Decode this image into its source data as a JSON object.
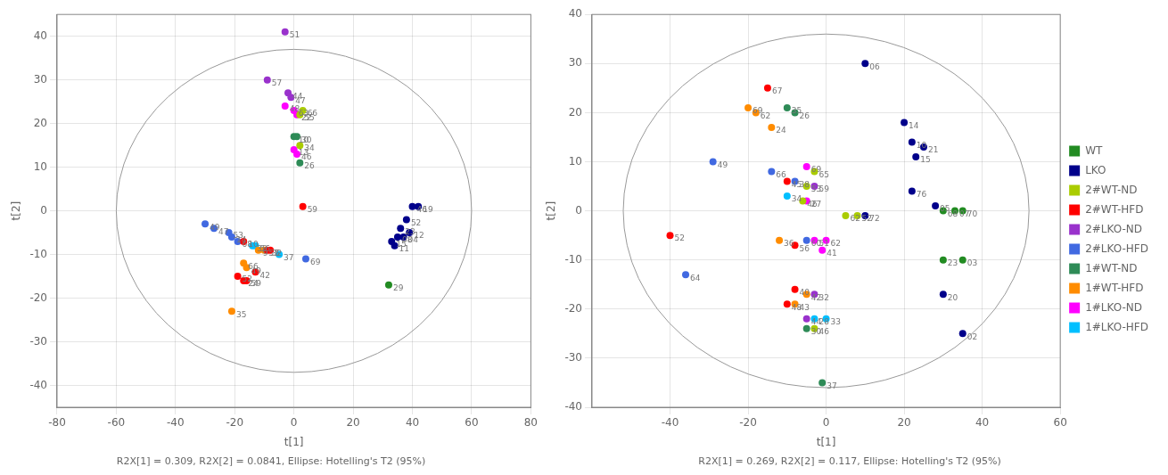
{
  "chart_data": [
    {
      "type": "scatter",
      "xlabel": "t[1]",
      "ylabel": "t[2]",
      "footnote": "R2X[1] = 0.309, R2X[2] = 0.0841, Ellipse: Hotelling's T2 (95%)",
      "xlim": [
        -80,
        80
      ],
      "ylim": [
        -45,
        45
      ],
      "xticks": [
        -80,
        -60,
        -40,
        -20,
        0,
        20,
        40,
        60,
        80
      ],
      "yticks": [
        -40,
        -30,
        -20,
        -10,
        0,
        10,
        20,
        30,
        40
      ],
      "grid": true,
      "ellipse": {
        "center": [
          0,
          0
        ],
        "rx": 60,
        "ry": 37
      },
      "series": [
        {
          "name": "WT",
          "color": "#228B22",
          "x": [
            32
          ],
          "values": [
            -17
          ],
          "labels": [
            "29"
          ]
        },
        {
          "name": "LKO",
          "color": "#00008B",
          "x": [
            40,
            42,
            38,
            36,
            39,
            35,
            37,
            33,
            34
          ],
          "values": [
            1,
            1,
            -2,
            -4,
            -5,
            -6,
            -6,
            -7,
            -8
          ],
          "labels": [
            "46",
            "19",
            "52",
            "23",
            "12",
            "08",
            "04",
            "15",
            "11"
          ]
        },
        {
          "name": "2#WT-ND",
          "color": "#AACC00",
          "x": [
            3,
            2,
            2
          ],
          "values": [
            23,
            22,
            15
          ],
          "labels": [
            "66",
            "55",
            "34"
          ]
        },
        {
          "name": "2#WT-HFD",
          "color": "#FF0000",
          "x": [
            3,
            -17,
            -9,
            -8,
            -13,
            -19,
            -17,
            -16
          ],
          "values": [
            1,
            -7,
            -9,
            -9,
            -14,
            -15,
            -16,
            -16
          ],
          "labels": [
            "59",
            "10",
            "32",
            "5",
            "42",
            "52",
            "24",
            "59"
          ]
        },
        {
          "name": "2#LKO-ND",
          "color": "#9932CC",
          "x": [
            -3,
            -9,
            -2,
            -1
          ],
          "values": [
            41,
            30,
            27,
            26
          ],
          "labels": [
            "51",
            "57",
            "44",
            "47"
          ]
        },
        {
          "name": "2#LKO-HFD",
          "color": "#4169E1",
          "x": [
            -30,
            -27,
            -22,
            -21,
            -19,
            4
          ],
          "values": [
            -3,
            -4,
            -5,
            -6,
            -7,
            -11
          ],
          "labels": [
            "49",
            "47",
            "53",
            "14",
            "68",
            "69"
          ]
        },
        {
          "name": "1#WT-ND",
          "color": "#2E8B57",
          "x": [
            0,
            1,
            2
          ],
          "values": [
            17,
            17,
            11
          ],
          "labels": [
            "10",
            "30",
            "26"
          ]
        },
        {
          "name": "1#WT-HFD",
          "color": "#FF8C00",
          "x": [
            -12,
            -10,
            -17,
            -16,
            -21
          ],
          "values": [
            -9,
            -9,
            -12,
            -13,
            -23
          ],
          "labels": [
            "9",
            "57",
            "66",
            "49",
            "35"
          ]
        },
        {
          "name": "1#LKO-ND",
          "color": "#FF00FF",
          "x": [
            -3,
            0,
            1,
            0,
            1
          ],
          "values": [
            24,
            23,
            22,
            14,
            13
          ],
          "labels": [
            "48",
            "63",
            "22",
            "13",
            "46"
          ]
        },
        {
          "name": "1#LKO-HFD",
          "color": "#00BFFF",
          "x": [
            -14,
            -13,
            -5
          ],
          "values": [
            -8,
            -8,
            -10
          ],
          "labels": [
            "38",
            "56",
            "37"
          ]
        }
      ]
    },
    {
      "type": "scatter",
      "xlabel": "t[1]",
      "ylabel": "t[2]",
      "footnote": "R2X[1] = 0.269, R2X[2] = 0.117, Ellipse: Hotelling's T2 (95%)",
      "xlim": [
        -60,
        60
      ],
      "ylim": [
        -40,
        40
      ],
      "xticks": [
        -40,
        -20,
        0,
        20,
        40,
        60
      ],
      "yticks": [
        -40,
        -30,
        -20,
        -10,
        0,
        10,
        20,
        30,
        40
      ],
      "grid": true,
      "legend": "right",
      "ellipse": {
        "center": [
          0,
          0
        ],
        "rx": 52,
        "ry": 36
      },
      "series": [
        {
          "name": "WT",
          "color": "#228B22",
          "x": [
            30,
            33,
            35,
            30,
            35
          ],
          "values": [
            0,
            0,
            0,
            -10,
            -10
          ],
          "labels": [
            "68",
            "07",
            "70",
            "23",
            "03"
          ]
        },
        {
          "name": "LKO",
          "color": "#00008B",
          "x": [
            10,
            20,
            22,
            25,
            23,
            22,
            28,
            10,
            30,
            35
          ],
          "values": [
            30,
            18,
            14,
            13,
            11,
            4,
            1,
            -1,
            -17,
            -25
          ],
          "labels": [
            "06",
            "14",
            "10",
            "21",
            "15",
            "76",
            "05",
            "72",
            "20",
            "02"
          ]
        },
        {
          "name": "2#WT-ND",
          "color": "#AACC00",
          "x": [
            -3,
            -5,
            -6,
            5,
            8,
            -3
          ],
          "values": [
            8,
            5,
            2,
            -1,
            -1,
            -24
          ],
          "labels": [
            "65",
            "53",
            "46",
            "62",
            "52",
            "46"
          ]
        },
        {
          "name": "2#WT-HFD",
          "color": "#FF0000",
          "x": [
            -15,
            -10,
            -40,
            -8,
            -8,
            -10
          ],
          "values": [
            25,
            6,
            -5,
            -7,
            -16,
            -19
          ],
          "labels": [
            "67",
            "45",
            "52",
            "56",
            "40",
            "48"
          ]
        },
        {
          "name": "2#LKO-ND",
          "color": "#9932CC",
          "x": [
            -3,
            -3,
            -5
          ],
          "values": [
            5,
            -17,
            -22
          ],
          "labels": [
            "59",
            "32",
            "44"
          ]
        },
        {
          "name": "2#LKO-HFD",
          "color": "#4169E1",
          "x": [
            -29,
            -14,
            -8,
            -5,
            -36
          ],
          "values": [
            10,
            8,
            6,
            -6,
            -13
          ],
          "labels": [
            "49",
            "66",
            "38",
            "60",
            "64"
          ]
        },
        {
          "name": "1#WT-ND",
          "color": "#2E8B57",
          "x": [
            -10,
            -8,
            -5,
            -1
          ],
          "values": [
            21,
            20,
            -24,
            -35
          ],
          "labels": [
            "35",
            "26",
            "30",
            "37"
          ]
        },
        {
          "name": "1#WT-HFD",
          "color": "#FF8C00",
          "x": [
            -20,
            -18,
            -14,
            -12,
            -5,
            -8
          ],
          "values": [
            21,
            20,
            17,
            -6,
            -17,
            -19
          ],
          "labels": [
            "69",
            "62",
            "24",
            "36",
            "42",
            "43"
          ]
        },
        {
          "name": "1#LKO-ND",
          "color": "#FF00FF",
          "x": [
            -5,
            -5,
            -3,
            0,
            -1
          ],
          "values": [
            9,
            2,
            -6,
            -6,
            -8
          ],
          "labels": [
            "69",
            "27",
            "51",
            "62",
            "41"
          ]
        },
        {
          "name": "1#LKO-HFD",
          "color": "#00BFFF",
          "x": [
            -10,
            -3,
            0
          ],
          "values": [
            3,
            -22,
            -22
          ],
          "labels": [
            "34",
            "28",
            "33"
          ]
        }
      ]
    }
  ]
}
